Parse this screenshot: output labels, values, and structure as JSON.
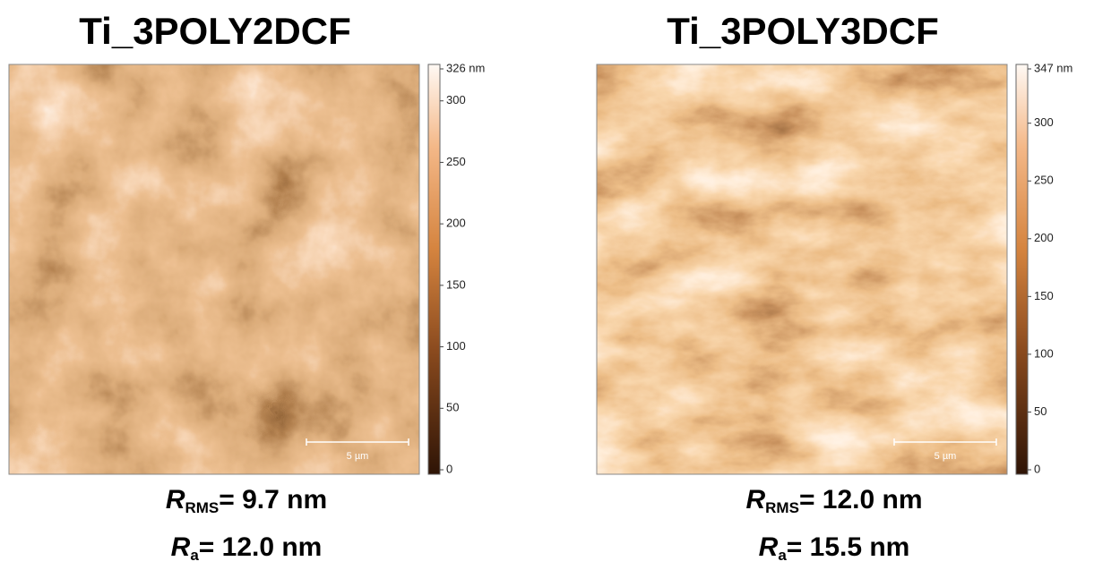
{
  "panels": [
    {
      "title": "Ti_3POLY2DCF",
      "colorbar": {
        "lim": [
          0,
          326
        ],
        "ticks": [
          0,
          50,
          100,
          150,
          200,
          250,
          300,
          {
            "value": 326,
            "label": "326 nm"
          }
        ]
      },
      "scale_bar": "5 µm",
      "rms": {
        "symbol": "R",
        "subscript": "RMS",
        "text": "= 9.7 nm"
      },
      "ra": {
        "symbol": "R",
        "subscript": "a",
        "text": "= 12.0 nm"
      }
    },
    {
      "title": "Ti_3POLY3DCF",
      "colorbar": {
        "lim": [
          0,
          347
        ],
        "ticks": [
          0,
          50,
          100,
          150,
          200,
          250,
          300,
          {
            "value": 347,
            "label": "347 nm"
          }
        ]
      },
      "scale_bar": "5 µm",
      "rms": {
        "symbol": "R",
        "subscript": "RMS",
        "text": "= 12.0 nm"
      },
      "ra": {
        "symbol": "R",
        "subscript": "a",
        "text": "= 15.5 nm"
      }
    }
  ]
}
